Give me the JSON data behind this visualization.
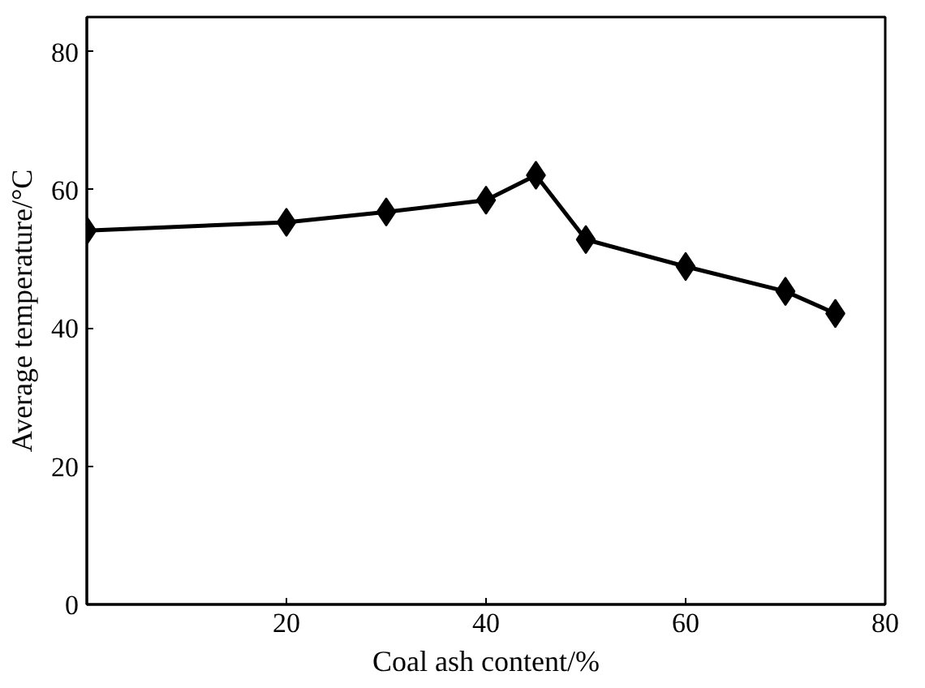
{
  "chart_data": {
    "type": "line",
    "xlabel": "Coal ash content/%",
    "ylabel": "Average temperature/°C",
    "x": [
      0,
      20,
      30,
      40,
      45,
      50,
      60,
      70,
      75
    ],
    "series": [
      {
        "color": "#000000",
        "values": [
          54.1,
          55.3,
          56.8,
          58.5,
          62.1,
          52.8,
          48.9,
          45.3,
          42.1
        ]
      }
    ],
    "xlim": [
      0,
      80
    ],
    "ylim": [
      0,
      85
    ],
    "xticks": [
      {
        "value": 0,
        "label": null
      },
      20,
      40,
      60,
      80
    ],
    "yticks": [
      0,
      20,
      40,
      60,
      80
    ],
    "marker": "diamond",
    "line_style": "solid",
    "grid": false
  }
}
